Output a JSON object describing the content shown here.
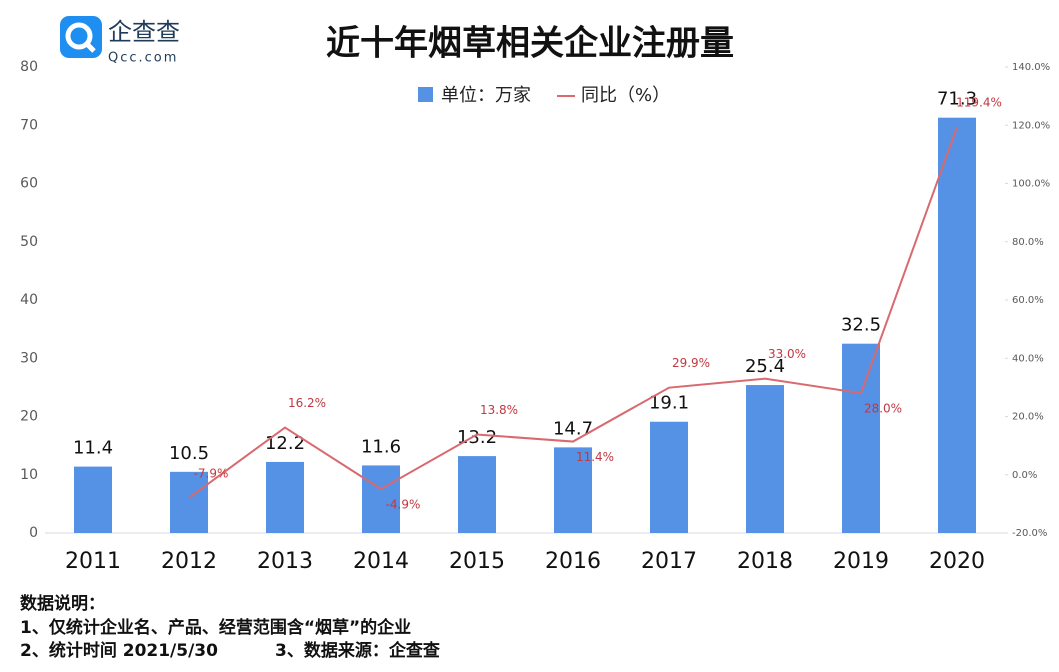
{
  "chart_data": {
    "type": "bar_line",
    "title": "近十年烟草相关企业注册量",
    "logo": {
      "name": "企查查",
      "url": "Qcc.com"
    },
    "categories": [
      "2011",
      "2012",
      "2013",
      "2014",
      "2015",
      "2016",
      "2017",
      "2018",
      "2019",
      "2020"
    ],
    "series": [
      {
        "name": "单位：万家",
        "type": "bar",
        "color": "#5591e4",
        "values": [
          11.4,
          10.5,
          12.2,
          11.6,
          13.2,
          14.7,
          19.1,
          25.4,
          32.5,
          71.3
        ]
      },
      {
        "name": "同比（%）",
        "type": "line",
        "axis": "y2",
        "color": "#d86a6f",
        "label_color": "#c0393f",
        "values": [
          null,
          -7.9,
          16.2,
          -4.9,
          13.8,
          11.4,
          29.9,
          33.0,
          28.0,
          119.4
        ],
        "value_labels": [
          null,
          "-7.9%",
          "16.2%",
          "-4.9%",
          "13.8%",
          "11.4%",
          "29.9%",
          "33.0%",
          "28.0%",
          "119.4%"
        ]
      }
    ],
    "ylim": [
      0,
      80
    ],
    "yticks": [
      0,
      10,
      20,
      30,
      40,
      50,
      60,
      70,
      80
    ],
    "y2lim": [
      -20,
      140
    ],
    "y2ticks": [
      {
        "value": -20,
        "label": "-20.0%"
      },
      {
        "value": 0,
        "label": "0.0%"
      },
      {
        "value": 20,
        "label": "20.0%"
      },
      {
        "value": 40,
        "label": "40.0%"
      },
      {
        "value": 60,
        "label": "60.0%"
      },
      {
        "value": 80,
        "label": "80.0%"
      },
      {
        "value": 100,
        "label": "100.0%"
      },
      {
        "value": 120,
        "label": "120.0%"
      },
      {
        "value": 140,
        "label": "140.0%"
      }
    ],
    "grid": false,
    "notes": [
      "数据说明：",
      "1、仅统计企业名、产品、经营范围含“烟草”的企业",
      "2、统计时间 2021/5/30",
      "3、数据来源：企查查"
    ]
  }
}
